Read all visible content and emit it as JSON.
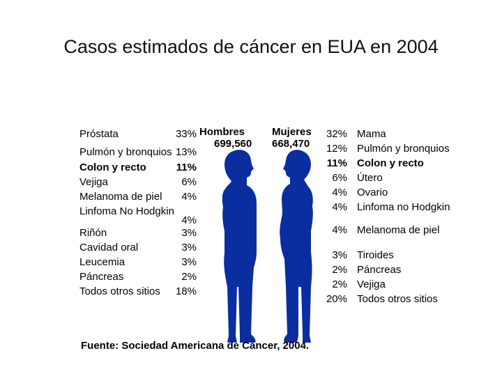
{
  "title": "Casos estimados de cáncer en EUA en 2004",
  "source": "Fuente: Sociedad Americana de Cáncer, 2004.",
  "figure_color": "#0A2EA0",
  "chart_data": {
    "type": "table",
    "title": "Casos estimados de cáncer en EUA en 2004",
    "groups": [
      {
        "name": "Hombres",
        "total": "699,560",
        "rows": [
          {
            "label": "Próstata",
            "value": "33%",
            "bold": false
          },
          {
            "label": "Pulmón y bronquios",
            "value": "13%",
            "bold": false
          },
          {
            "label": "Colon y recto",
            "value": "11%",
            "bold": true
          },
          {
            "label": "Vejiga",
            "value": "6%",
            "bold": false
          },
          {
            "label": "Melanoma de piel",
            "value": "4%",
            "bold": false
          },
          {
            "label": "Linfoma No Hodgkin",
            "value": "4%",
            "bold": false
          },
          {
            "label": "Riñón",
            "value": "3%",
            "bold": false
          },
          {
            "label": "Cavidad oral",
            "value": "3%",
            "bold": false
          },
          {
            "label": "Leucemia",
            "value": "3%",
            "bold": false
          },
          {
            "label": "Páncreas",
            "value": "2%",
            "bold": false
          },
          {
            "label": "Todos otros sitios",
            "value": "18%",
            "bold": false
          }
        ]
      },
      {
        "name": "Mujeres",
        "total": "668,470",
        "rows": [
          {
            "label": "Mama",
            "value": "32%",
            "bold": false
          },
          {
            "label": "Pulmón y bronquios",
            "value": "12%",
            "bold": false
          },
          {
            "label": "Colon y recto",
            "value": "11%",
            "bold": true
          },
          {
            "label": "Útero",
            "value": "6%",
            "bold": false
          },
          {
            "label": "Ovario",
            "value": "4%",
            "bold": false
          },
          {
            "label": "Linfoma no Hodgkin",
            "value": "4%",
            "bold": false
          },
          {
            "label": "Melanoma de piel",
            "value": "4%",
            "bold": false
          },
          {
            "label": "Tiroides",
            "value": "3%",
            "bold": false
          },
          {
            "label": "Páncreas",
            "value": "2%",
            "bold": false
          },
          {
            "label": "Vejiga",
            "value": "2%",
            "bold": false
          },
          {
            "label": "Todos otros sitios",
            "value": "20%",
            "bold": false
          }
        ]
      }
    ]
  }
}
